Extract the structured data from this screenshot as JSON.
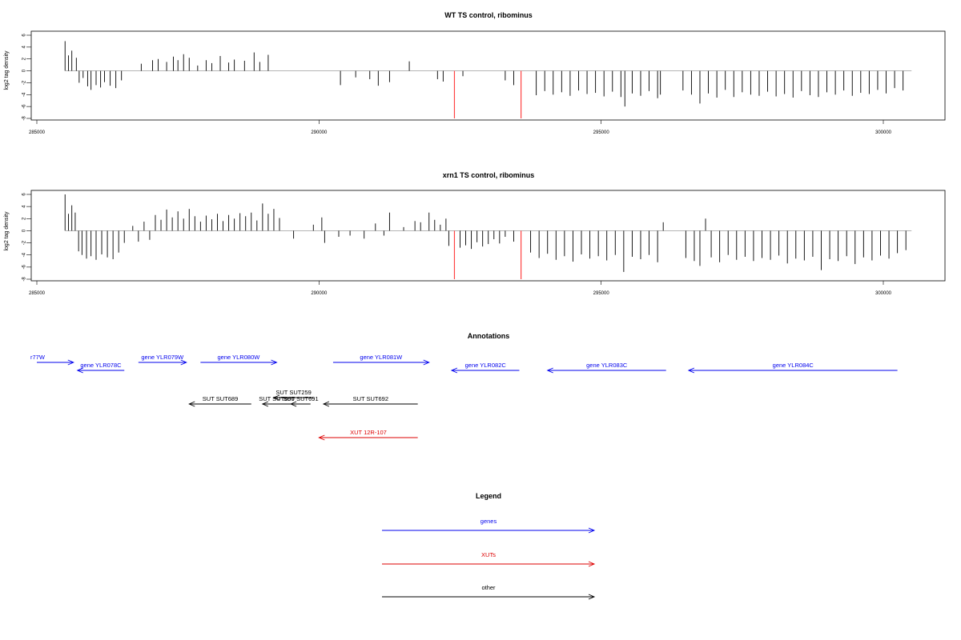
{
  "colors": {
    "gene": "#0000ee",
    "xut": "#dd0000",
    "other": "#000000",
    "red_mark": "#ff4444",
    "baseline": "#aaaaaa"
  },
  "chart_data": [
    {
      "type": "bar",
      "title": "WT TS control, ribominus",
      "ylabel": "log2 tag density",
      "xlim": [
        285000,
        300500
      ],
      "ylim": [
        -8,
        6
      ],
      "x_ticks": [
        "285000",
        "290000",
        "295000",
        "300000"
      ],
      "y_ticks": [
        "6",
        "4",
        "2",
        "0",
        "-2",
        "-4",
        "-6",
        "-8"
      ],
      "red_markers": [
        292400,
        293580
      ],
      "series": [
        {
          "values": [
            [
              285500,
              5.0
            ],
            [
              285560,
              2.6
            ],
            [
              285620,
              3.4
            ],
            [
              285700,
              2.2
            ],
            [
              285750,
              -2.0
            ],
            [
              285820,
              -1.2
            ],
            [
              285900,
              -2.6
            ],
            [
              285960,
              -3.2
            ],
            [
              286050,
              -2.4
            ],
            [
              286130,
              -2.8
            ],
            [
              286200,
              -1.9
            ],
            [
              286300,
              -2.5
            ],
            [
              286400,
              -2.9
            ],
            [
              286500,
              -1.6
            ],
            [
              286850,
              1.2
            ],
            [
              287050,
              1.8
            ],
            [
              287150,
              2.0
            ],
            [
              287300,
              1.5
            ],
            [
              287420,
              2.4
            ],
            [
              287500,
              1.8
            ],
            [
              287600,
              2.8
            ],
            [
              287700,
              2.2
            ],
            [
              287850,
              0.9
            ],
            [
              288000,
              1.8
            ],
            [
              288100,
              1.3
            ],
            [
              288250,
              2.5
            ],
            [
              288400,
              1.4
            ],
            [
              288500,
              1.9
            ],
            [
              288680,
              1.7
            ],
            [
              288850,
              3.1
            ],
            [
              288950,
              1.5
            ],
            [
              289100,
              2.7
            ],
            [
              290380,
              -2.4
            ],
            [
              290650,
              -1.1
            ],
            [
              290900,
              -1.4
            ],
            [
              291050,
              -2.5
            ],
            [
              291250,
              -1.9
            ],
            [
              291600,
              1.6
            ],
            [
              292100,
              -1.4
            ],
            [
              292200,
              -1.8
            ],
            [
              292550,
              -0.9
            ],
            [
              293300,
              -1.6
            ],
            [
              293450,
              -2.4
            ],
            [
              293850,
              -4.1
            ],
            [
              294000,
              -3.4
            ],
            [
              294150,
              -4.0
            ],
            [
              294300,
              -3.6
            ],
            [
              294450,
              -4.2
            ],
            [
              294600,
              -3.3
            ],
            [
              294750,
              -3.9
            ],
            [
              294900,
              -3.7
            ],
            [
              295050,
              -4.3
            ],
            [
              295200,
              -3.5
            ],
            [
              295350,
              -4.4
            ],
            [
              295420,
              -6.0
            ],
            [
              295550,
              -3.8
            ],
            [
              295700,
              -4.2
            ],
            [
              295850,
              -3.4
            ],
            [
              296000,
              -4.6
            ],
            [
              296050,
              -4.0
            ],
            [
              296450,
              -3.3
            ],
            [
              296600,
              -4.0
            ],
            [
              296750,
              -5.5
            ],
            [
              296900,
              -3.8
            ],
            [
              297050,
              -4.5
            ],
            [
              297200,
              -3.2
            ],
            [
              297350,
              -4.4
            ],
            [
              297500,
              -3.6
            ],
            [
              297650,
              -4.0
            ],
            [
              297800,
              -4.2
            ],
            [
              297950,
              -3.5
            ],
            [
              298100,
              -4.3
            ],
            [
              298250,
              -3.9
            ],
            [
              298400,
              -4.5
            ],
            [
              298550,
              -3.4
            ],
            [
              298700,
              -4.1
            ],
            [
              298850,
              -4.4
            ],
            [
              299000,
              -3.6
            ],
            [
              299150,
              -4.0
            ],
            [
              299300,
              -3.3
            ],
            [
              299450,
              -4.2
            ],
            [
              299600,
              -3.7
            ],
            [
              299750,
              -3.9
            ],
            [
              299900,
              -3.2
            ],
            [
              300050,
              -3.8
            ],
            [
              300200,
              -2.9
            ],
            [
              300350,
              -3.3
            ]
          ]
        }
      ]
    },
    {
      "type": "bar",
      "title": "xrn1 TS control, ribominus",
      "ylabel": "log2 tag density",
      "xlim": [
        285000,
        300500
      ],
      "ylim": [
        -8,
        6
      ],
      "x_ticks": [
        "285000",
        "290000",
        "295000",
        "300000"
      ],
      "y_ticks": [
        "6",
        "4",
        "2",
        "0",
        "-2",
        "-4",
        "-6",
        "-8"
      ],
      "red_markers": [
        292400,
        293580
      ],
      "series": [
        {
          "values": [
            [
              285500,
              6.0
            ],
            [
              285560,
              2.8
            ],
            [
              285620,
              4.2
            ],
            [
              285680,
              3.0
            ],
            [
              285740,
              -3.4
            ],
            [
              285800,
              -4.0
            ],
            [
              285880,
              -4.6
            ],
            [
              285960,
              -4.2
            ],
            [
              286050,
              -4.8
            ],
            [
              286150,
              -3.9
            ],
            [
              286250,
              -4.4
            ],
            [
              286350,
              -4.7
            ],
            [
              286450,
              -3.6
            ],
            [
              286550,
              -2.0
            ],
            [
              286700,
              0.8
            ],
            [
              286800,
              -1.8
            ],
            [
              286900,
              1.5
            ],
            [
              287000,
              -1.5
            ],
            [
              287100,
              2.6
            ],
            [
              287200,
              1.8
            ],
            [
              287300,
              3.5
            ],
            [
              287400,
              2.2
            ],
            [
              287500,
              3.2
            ],
            [
              287600,
              2.0
            ],
            [
              287700,
              3.6
            ],
            [
              287800,
              2.4
            ],
            [
              287900,
              1.5
            ],
            [
              288000,
              2.5
            ],
            [
              288100,
              1.9
            ],
            [
              288200,
              2.8
            ],
            [
              288300,
              1.6
            ],
            [
              288400,
              2.6
            ],
            [
              288500,
              2.0
            ],
            [
              288600,
              2.9
            ],
            [
              288700,
              2.4
            ],
            [
              288800,
              3.0
            ],
            [
              288900,
              1.7
            ],
            [
              289000,
              4.5
            ],
            [
              289100,
              2.8
            ],
            [
              289200,
              3.6
            ],
            [
              289300,
              2.1
            ],
            [
              289550,
              -1.3
            ],
            [
              289900,
              1.0
            ],
            [
              290050,
              2.2
            ],
            [
              290100,
              -2.0
            ],
            [
              290350,
              -1.0
            ],
            [
              290550,
              -0.8
            ],
            [
              290800,
              -1.3
            ],
            [
              291000,
              1.2
            ],
            [
              291150,
              -0.8
            ],
            [
              291250,
              3.0
            ],
            [
              291500,
              0.6
            ],
            [
              291700,
              1.6
            ],
            [
              291800,
              1.4
            ],
            [
              291950,
              3.0
            ],
            [
              292050,
              1.8
            ],
            [
              292150,
              1.0
            ],
            [
              292250,
              2.0
            ],
            [
              292300,
              -2.5
            ],
            [
              292500,
              -2.8
            ],
            [
              292600,
              -2.4
            ],
            [
              292700,
              -3.0
            ],
            [
              292800,
              -1.9
            ],
            [
              292900,
              -2.6
            ],
            [
              293000,
              -2.2
            ],
            [
              293100,
              -1.4
            ],
            [
              293200,
              -2.1
            ],
            [
              293300,
              -1.0
            ],
            [
              293450,
              -1.8
            ],
            [
              293750,
              -3.6
            ],
            [
              293900,
              -4.5
            ],
            [
              294050,
              -3.8
            ],
            [
              294200,
              -4.8
            ],
            [
              294350,
              -4.2
            ],
            [
              294500,
              -5.1
            ],
            [
              294650,
              -3.9
            ],
            [
              294800,
              -4.6
            ],
            [
              294950,
              -4.2
            ],
            [
              295100,
              -4.9
            ],
            [
              295250,
              -4.0
            ],
            [
              295400,
              -6.8
            ],
            [
              295550,
              -4.3
            ],
            [
              295700,
              -4.7
            ],
            [
              295850,
              -4.0
            ],
            [
              296000,
              -5.2
            ],
            [
              296100,
              1.4
            ],
            [
              296500,
              -4.5
            ],
            [
              296650,
              -5.0
            ],
            [
              296750,
              -5.8
            ],
            [
              296850,
              2.0
            ],
            [
              296950,
              -4.4
            ],
            [
              297100,
              -5.2
            ],
            [
              297250,
              -4.0
            ],
            [
              297400,
              -4.8
            ],
            [
              297550,
              -4.3
            ],
            [
              297700,
              -5.0
            ],
            [
              297850,
              -4.5
            ],
            [
              298000,
              -4.8
            ],
            [
              298150,
              -4.1
            ],
            [
              298300,
              -5.4
            ],
            [
              298450,
              -4.6
            ],
            [
              298600,
              -4.9
            ],
            [
              298750,
              -4.3
            ],
            [
              298900,
              -6.5
            ],
            [
              299050,
              -4.7
            ],
            [
              299200,
              -5.0
            ],
            [
              299350,
              -4.2
            ],
            [
              299500,
              -5.5
            ],
            [
              299650,
              -4.4
            ],
            [
              299800,
              -4.9
            ],
            [
              299950,
              -4.1
            ],
            [
              300100,
              -4.6
            ],
            [
              300250,
              -3.7
            ],
            [
              300400,
              -3.2
            ]
          ]
        }
      ]
    },
    {
      "type": "diagram",
      "title": "Annotations",
      "features": [
        {
          "label": "r77W",
          "start": 285000,
          "end": 285650,
          "strand": "+",
          "kind": "gene",
          "row": 0
        },
        {
          "label": "gene YLR078C",
          "start": 285720,
          "end": 286550,
          "strand": "-",
          "kind": "gene",
          "row": 1
        },
        {
          "label": "gene YLR079W",
          "start": 286800,
          "end": 287650,
          "strand": "+",
          "kind": "gene",
          "row": 0
        },
        {
          "label": "gene YLR080W",
          "start": 287900,
          "end": 289250,
          "strand": "+",
          "kind": "gene",
          "row": 0
        },
        {
          "label": "gene YLR081W",
          "start": 290250,
          "end": 291950,
          "strand": "+",
          "kind": "gene",
          "row": 0
        },
        {
          "label": "gene YLR082C",
          "start": 292350,
          "end": 293550,
          "strand": "-",
          "kind": "gene",
          "row": 1
        },
        {
          "label": "gene YLR083C",
          "start": 294050,
          "end": 296150,
          "strand": "-",
          "kind": "gene",
          "row": 1
        },
        {
          "label": "gene YLR084C",
          "start": 296550,
          "end": 300250,
          "strand": "-",
          "kind": "gene",
          "row": 1
        },
        {
          "label": "SUT SUT689",
          "start": 287700,
          "end": 288800,
          "strand": "-",
          "kind": "other",
          "row": 2
        },
        {
          "label": "SUT SUT690",
          "start": 289000,
          "end": 289500,
          "strand": "-",
          "kind": "other",
          "row": 2
        },
        {
          "label": "SUT SUT259",
          "start": 289200,
          "end": 289900,
          "strand": "-",
          "kind": "other",
          "row": 3
        },
        {
          "label": "SUT SUT691",
          "start": 289500,
          "end": 289850,
          "strand": "-",
          "kind": "other",
          "row": 2
        },
        {
          "label": "SUT SUT692",
          "start": 290080,
          "end": 291750,
          "strand": "-",
          "kind": "other",
          "row": 2
        },
        {
          "label": "XUT 12R-107",
          "start": 290000,
          "end": 291750,
          "strand": "-",
          "kind": "xut",
          "row": 4
        }
      ]
    }
  ],
  "legend": {
    "title": "Legend",
    "items": [
      {
        "label": "genes",
        "kind": "gene"
      },
      {
        "label": "XUTs",
        "kind": "xut"
      },
      {
        "label": "other",
        "kind": "other"
      }
    ]
  }
}
